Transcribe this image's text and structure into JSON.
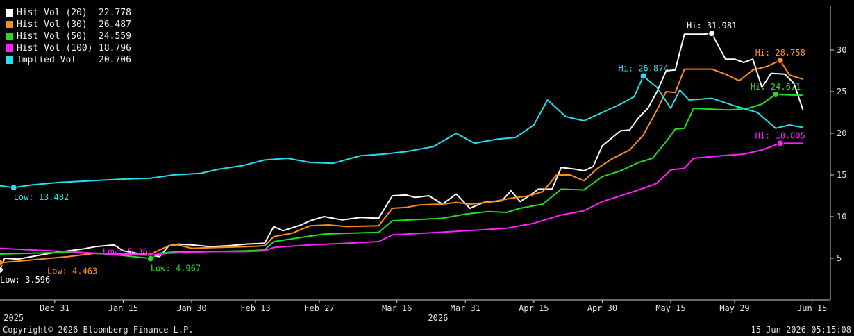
{
  "legend": [
    {
      "name": "Hist Vol (20)",
      "value": "22.778",
      "color": "#ffffff"
    },
    {
      "name": "Hist Vol (30)",
      "value": "26.487",
      "color": "#ff8c1a"
    },
    {
      "name": "Hist Vol (50)",
      "value": "24.559",
      "color": "#22dd22"
    },
    {
      "name": "Hist Vol (100)",
      "value": "18.796",
      "color": "#ff22ff"
    },
    {
      "name": "Implied Vol",
      "value": "20.706",
      "color": "#22e0ee"
    }
  ],
  "footer": {
    "copyright": "Copyright© 2026 Bloomberg Finance L.P.",
    "timestamp": "15-Jun-2026 05:15:08"
  },
  "chart_data": {
    "type": "line",
    "xlim": [
      "2025-12-19",
      "2026-06-19"
    ],
    "ylim": [
      0,
      35
    ],
    "yticks": [
      5,
      10,
      15,
      20,
      25,
      30
    ],
    "xticks": [
      {
        "date": "2025-12-31",
        "label": "Dec 31"
      },
      {
        "date": "2026-01-15",
        "label": "Jan 15"
      },
      {
        "date": "2026-01-30",
        "label": "Jan 30"
      },
      {
        "date": "2026-02-13",
        "label": "Feb 13"
      },
      {
        "date": "2026-02-27",
        "label": "Feb 27"
      },
      {
        "date": "2026-03-16",
        "label": "Mar 16"
      },
      {
        "date": "2026-03-31",
        "label": "Mar 31"
      },
      {
        "date": "2026-04-15",
        "label": "Apr 15"
      },
      {
        "date": "2026-04-30",
        "label": "Apr 30"
      },
      {
        "date": "2026-05-15",
        "label": "May 15"
      },
      {
        "date": "2026-05-29",
        "label": "May 29"
      },
      {
        "date": "2026-06-15",
        "label": "Jun 15"
      }
    ],
    "year_labels": [
      {
        "date": "2025-12-22",
        "label": "2025"
      },
      {
        "date": "2026-03-25",
        "label": "2026"
      }
    ],
    "grid": false,
    "legend_position": "top-left",
    "series": [
      {
        "name": "Hist Vol (20)",
        "color": "#ffffff",
        "points": [
          [
            "2025-12-19",
            3.6
          ],
          [
            "2025-12-20",
            5.0
          ],
          [
            "2025-12-23",
            4.9
          ],
          [
            "2025-12-26",
            5.2
          ],
          [
            "2025-12-30",
            5.6
          ],
          [
            "2026-01-03",
            5.9
          ],
          [
            "2026-01-06",
            6.1
          ],
          [
            "2026-01-09",
            6.4
          ],
          [
            "2026-01-13",
            6.6
          ],
          [
            "2026-01-15",
            5.9
          ],
          [
            "2026-01-19",
            5.5
          ],
          [
            "2026-01-23",
            5.2
          ],
          [
            "2026-01-25",
            6.5
          ],
          [
            "2026-01-27",
            6.7
          ],
          [
            "2026-01-30",
            6.6
          ],
          [
            "2026-02-03",
            6.4
          ],
          [
            "2026-02-07",
            6.5
          ],
          [
            "2026-02-11",
            6.7
          ],
          [
            "2026-02-15",
            6.8
          ],
          [
            "2026-02-17",
            8.8
          ],
          [
            "2026-02-19",
            8.3
          ],
          [
            "2026-02-23",
            9.0
          ],
          [
            "2026-02-25",
            9.5
          ],
          [
            "2026-02-28",
            10.0
          ],
          [
            "2026-03-04",
            9.6
          ],
          [
            "2026-03-08",
            9.9
          ],
          [
            "2026-03-12",
            9.8
          ],
          [
            "2026-03-15",
            12.5
          ],
          [
            "2026-03-18",
            12.6
          ],
          [
            "2026-03-20",
            12.3
          ],
          [
            "2026-03-23",
            12.5
          ],
          [
            "2026-03-26",
            11.5
          ],
          [
            "2026-03-29",
            12.7
          ],
          [
            "2026-04-01",
            11.0
          ],
          [
            "2026-04-04",
            11.7
          ],
          [
            "2026-04-08",
            11.9
          ],
          [
            "2026-04-10",
            13.1
          ],
          [
            "2026-04-12",
            11.8
          ],
          [
            "2026-04-14",
            12.5
          ],
          [
            "2026-04-16",
            13.3
          ],
          [
            "2026-04-19",
            13.3
          ],
          [
            "2026-04-21",
            15.9
          ],
          [
            "2026-04-24",
            15.7
          ],
          [
            "2026-04-26",
            15.5
          ],
          [
            "2026-04-28",
            16.0
          ],
          [
            "2026-04-30",
            18.5
          ],
          [
            "2026-05-04",
            20.3
          ],
          [
            "2026-05-06",
            20.4
          ],
          [
            "2026-05-08",
            21.9
          ],
          [
            "2026-05-10",
            23.0
          ],
          [
            "2026-05-12",
            25.0
          ],
          [
            "2026-05-14",
            27.5
          ],
          [
            "2026-05-16",
            27.6
          ],
          [
            "2026-05-18",
            31.9
          ],
          [
            "2026-05-22",
            31.9
          ],
          [
            "2026-05-24",
            31.98
          ],
          [
            "2026-05-27",
            28.9
          ],
          [
            "2026-05-29",
            28.9
          ],
          [
            "2026-05-31",
            28.5
          ],
          [
            "2026-06-02",
            28.9
          ],
          [
            "2026-06-04",
            25.5
          ],
          [
            "2026-06-06",
            27.2
          ],
          [
            "2026-06-09",
            27.1
          ],
          [
            "2026-06-11",
            26.0
          ],
          [
            "2026-06-13",
            22.78
          ]
        ]
      },
      {
        "name": "Hist Vol (30)",
        "color": "#ff8c1a",
        "points": [
          [
            "2025-12-19",
            4.46
          ],
          [
            "2025-12-22",
            4.6
          ],
          [
            "2025-12-26",
            4.8
          ],
          [
            "2025-12-30",
            5.0
          ],
          [
            "2026-01-03",
            5.2
          ],
          [
            "2026-01-09",
            5.6
          ],
          [
            "2026-01-15",
            5.5
          ],
          [
            "2026-01-21",
            5.5
          ],
          [
            "2026-01-25",
            6.5
          ],
          [
            "2026-01-27",
            6.6
          ],
          [
            "2026-01-30",
            6.2
          ],
          [
            "2026-02-05",
            6.3
          ],
          [
            "2026-02-11",
            6.4
          ],
          [
            "2026-02-15",
            6.5
          ],
          [
            "2026-02-17",
            7.6
          ],
          [
            "2026-02-21",
            8.0
          ],
          [
            "2026-02-25",
            8.9
          ],
          [
            "2026-03-01",
            9.0
          ],
          [
            "2026-03-05",
            8.8
          ],
          [
            "2026-03-12",
            8.9
          ],
          [
            "2026-03-15",
            11.0
          ],
          [
            "2026-03-18",
            11.1
          ],
          [
            "2026-03-21",
            11.4
          ],
          [
            "2026-03-26",
            11.5
          ],
          [
            "2026-03-29",
            11.7
          ],
          [
            "2026-04-01",
            11.5
          ],
          [
            "2026-04-05",
            11.7
          ],
          [
            "2026-04-10",
            12.2
          ],
          [
            "2026-04-14",
            12.5
          ],
          [
            "2026-04-17",
            13.0
          ],
          [
            "2026-04-20",
            15.0
          ],
          [
            "2026-04-23",
            15.0
          ],
          [
            "2026-04-26",
            14.3
          ],
          [
            "2026-04-29",
            15.8
          ],
          [
            "2026-05-02",
            16.9
          ],
          [
            "2026-05-06",
            18.0
          ],
          [
            "2026-05-09",
            19.8
          ],
          [
            "2026-05-12",
            22.8
          ],
          [
            "2026-05-14",
            25.0
          ],
          [
            "2026-05-16",
            24.9
          ],
          [
            "2026-05-18",
            27.7
          ],
          [
            "2026-05-24",
            27.7
          ],
          [
            "2026-05-27",
            27.1
          ],
          [
            "2026-05-30",
            26.3
          ],
          [
            "2026-06-02",
            27.6
          ],
          [
            "2026-06-05",
            28.0
          ],
          [
            "2026-06-08",
            28.76
          ],
          [
            "2026-06-10",
            27.0
          ],
          [
            "2026-06-13",
            26.49
          ]
        ]
      },
      {
        "name": "Hist Vol (50)",
        "color": "#22dd22",
        "points": [
          [
            "2025-12-19",
            5.5
          ],
          [
            "2025-12-26",
            5.6
          ],
          [
            "2026-01-03",
            5.7
          ],
          [
            "2026-01-12",
            5.5
          ],
          [
            "2026-01-21",
            4.97
          ],
          [
            "2026-01-23",
            5.6
          ],
          [
            "2026-01-27",
            5.8
          ],
          [
            "2026-02-03",
            5.8
          ],
          [
            "2026-02-11",
            5.9
          ],
          [
            "2026-02-15",
            6.0
          ],
          [
            "2026-02-17",
            7.0
          ],
          [
            "2026-02-23",
            7.5
          ],
          [
            "2026-02-28",
            7.9
          ],
          [
            "2026-03-05",
            8.0
          ],
          [
            "2026-03-12",
            8.1
          ],
          [
            "2026-03-15",
            9.5
          ],
          [
            "2026-03-19",
            9.6
          ],
          [
            "2026-03-26",
            9.8
          ],
          [
            "2026-03-31",
            10.3
          ],
          [
            "2026-04-05",
            10.6
          ],
          [
            "2026-04-09",
            10.5
          ],
          [
            "2026-04-12",
            11.0
          ],
          [
            "2026-04-17",
            11.5
          ],
          [
            "2026-04-21",
            13.3
          ],
          [
            "2026-04-26",
            13.2
          ],
          [
            "2026-04-30",
            14.8
          ],
          [
            "2026-05-04",
            15.5
          ],
          [
            "2026-05-08",
            16.5
          ],
          [
            "2026-05-11",
            17.0
          ],
          [
            "2026-05-14",
            19.0
          ],
          [
            "2026-05-16",
            20.5
          ],
          [
            "2026-05-18",
            20.6
          ],
          [
            "2026-05-20",
            23.0
          ],
          [
            "2026-05-24",
            22.9
          ],
          [
            "2026-05-28",
            22.8
          ],
          [
            "2026-06-01",
            23.0
          ],
          [
            "2026-06-04",
            23.5
          ],
          [
            "2026-06-07",
            24.67
          ],
          [
            "2026-06-10",
            24.6
          ],
          [
            "2026-06-13",
            24.56
          ]
        ]
      },
      {
        "name": "Hist Vol (100)",
        "color": "#ff22ff",
        "points": [
          [
            "2025-12-19",
            6.2
          ],
          [
            "2025-12-26",
            6.0
          ],
          [
            "2026-01-03",
            5.8
          ],
          [
            "2026-01-12",
            5.5
          ],
          [
            "2026-01-21",
            5.36
          ],
          [
            "2026-01-25",
            5.6
          ],
          [
            "2026-02-03",
            5.8
          ],
          [
            "2026-02-11",
            5.8
          ],
          [
            "2026-02-15",
            5.9
          ],
          [
            "2026-02-17",
            6.3
          ],
          [
            "2026-02-25",
            6.6
          ],
          [
            "2026-03-05",
            6.8
          ],
          [
            "2026-03-12",
            7.0
          ],
          [
            "2026-03-15",
            7.8
          ],
          [
            "2026-03-25",
            8.1
          ],
          [
            "2026-04-03",
            8.4
          ],
          [
            "2026-04-09",
            8.6
          ],
          [
            "2026-04-15",
            9.2
          ],
          [
            "2026-04-21",
            10.2
          ],
          [
            "2026-04-26",
            10.7
          ],
          [
            "2026-04-30",
            11.8
          ],
          [
            "2026-05-04",
            12.5
          ],
          [
            "2026-05-08",
            13.2
          ],
          [
            "2026-05-12",
            14.0
          ],
          [
            "2026-05-15",
            15.6
          ],
          [
            "2026-05-18",
            15.8
          ],
          [
            "2026-05-20",
            17.0
          ],
          [
            "2026-05-26",
            17.3
          ],
          [
            "2026-05-31",
            17.5
          ],
          [
            "2026-06-04",
            18.0
          ],
          [
            "2026-06-08",
            18.805
          ],
          [
            "2026-06-13",
            18.796
          ]
        ]
      },
      {
        "name": "Implied Vol",
        "color": "#22e0ee",
        "points": [
          [
            "2025-12-19",
            13.7
          ],
          [
            "2025-12-22",
            13.48
          ],
          [
            "2025-12-26",
            13.8
          ],
          [
            "2026-01-01",
            14.1
          ],
          [
            "2026-01-08",
            14.3
          ],
          [
            "2026-01-15",
            14.5
          ],
          [
            "2026-01-21",
            14.6
          ],
          [
            "2026-01-26",
            15.0
          ],
          [
            "2026-02-01",
            15.2
          ],
          [
            "2026-02-05",
            15.7
          ],
          [
            "2026-02-10",
            16.1
          ],
          [
            "2026-02-15",
            16.8
          ],
          [
            "2026-02-20",
            17.0
          ],
          [
            "2026-02-25",
            16.5
          ],
          [
            "2026-03-02",
            16.4
          ],
          [
            "2026-03-08",
            17.3
          ],
          [
            "2026-03-13",
            17.5
          ],
          [
            "2026-03-18",
            17.8
          ],
          [
            "2026-03-24",
            18.4
          ],
          [
            "2026-03-29",
            20.0
          ],
          [
            "2026-04-02",
            18.8
          ],
          [
            "2026-04-07",
            19.3
          ],
          [
            "2026-04-11",
            19.5
          ],
          [
            "2026-04-15",
            21.0
          ],
          [
            "2026-04-18",
            24.0
          ],
          [
            "2026-04-22",
            22.0
          ],
          [
            "2026-04-26",
            21.5
          ],
          [
            "2026-04-30",
            22.5
          ],
          [
            "2026-05-04",
            23.5
          ],
          [
            "2026-05-07",
            24.4
          ],
          [
            "2026-05-09",
            26.87
          ],
          [
            "2026-05-12",
            25.5
          ],
          [
            "2026-05-15",
            23.0
          ],
          [
            "2026-05-17",
            25.2
          ],
          [
            "2026-05-19",
            24.0
          ],
          [
            "2026-05-24",
            24.2
          ],
          [
            "2026-05-29",
            23.3
          ],
          [
            "2026-06-03",
            22.5
          ],
          [
            "2026-06-07",
            20.6
          ],
          [
            "2026-06-10",
            21.0
          ],
          [
            "2026-06-13",
            20.71
          ]
        ]
      }
    ],
    "annotations": [
      {
        "series": "Hist Vol (20)",
        "date": "2025-12-19",
        "value": 3.596,
        "text": "Low: 3.596",
        "color": "#ffffff",
        "anchor": "below-right"
      },
      {
        "series": "Hist Vol (30)",
        "date": "2025-12-19",
        "value": 4.463,
        "text": "Low: 4.463",
        "color": "#ff8c1a",
        "anchor": "far-right"
      },
      {
        "series": "Hist Vol (100)",
        "date": "2026-01-21",
        "value": 5.36,
        "text": "Low: 5.36",
        "color": "#ff22ff",
        "anchor": "below-left"
      },
      {
        "series": "Hist Vol (50)",
        "date": "2026-01-21",
        "value": 4.967,
        "text": "Low: 4.967",
        "color": "#22dd22",
        "anchor": "below-right"
      },
      {
        "series": "Implied Vol",
        "date": "2025-12-22",
        "value": 13.482,
        "text": "Low: 13.482",
        "color": "#22e0ee",
        "anchor": "below-right"
      },
      {
        "series": "Implied Vol",
        "date": "2026-05-09",
        "value": 26.874,
        "text": "Hi: 26.874",
        "color": "#22e0ee",
        "anchor": "above"
      },
      {
        "series": "Hist Vol (20)",
        "date": "2026-05-24",
        "value": 31.981,
        "text": "Hi: 31.981",
        "color": "#ffffff",
        "anchor": "above"
      },
      {
        "series": "Hist Vol (30)",
        "date": "2026-06-08",
        "value": 28.758,
        "text": "Hi: 28.758",
        "color": "#ff8c1a",
        "anchor": "above"
      },
      {
        "series": "Hist Vol (50)",
        "date": "2026-06-07",
        "value": 24.671,
        "text": "Hi: 24.671",
        "color": "#22dd22",
        "anchor": "above"
      },
      {
        "series": "Hist Vol (100)",
        "date": "2026-06-08",
        "value": 18.805,
        "text": "Hi: 18.805",
        "color": "#ff22ff",
        "anchor": "above"
      }
    ]
  }
}
